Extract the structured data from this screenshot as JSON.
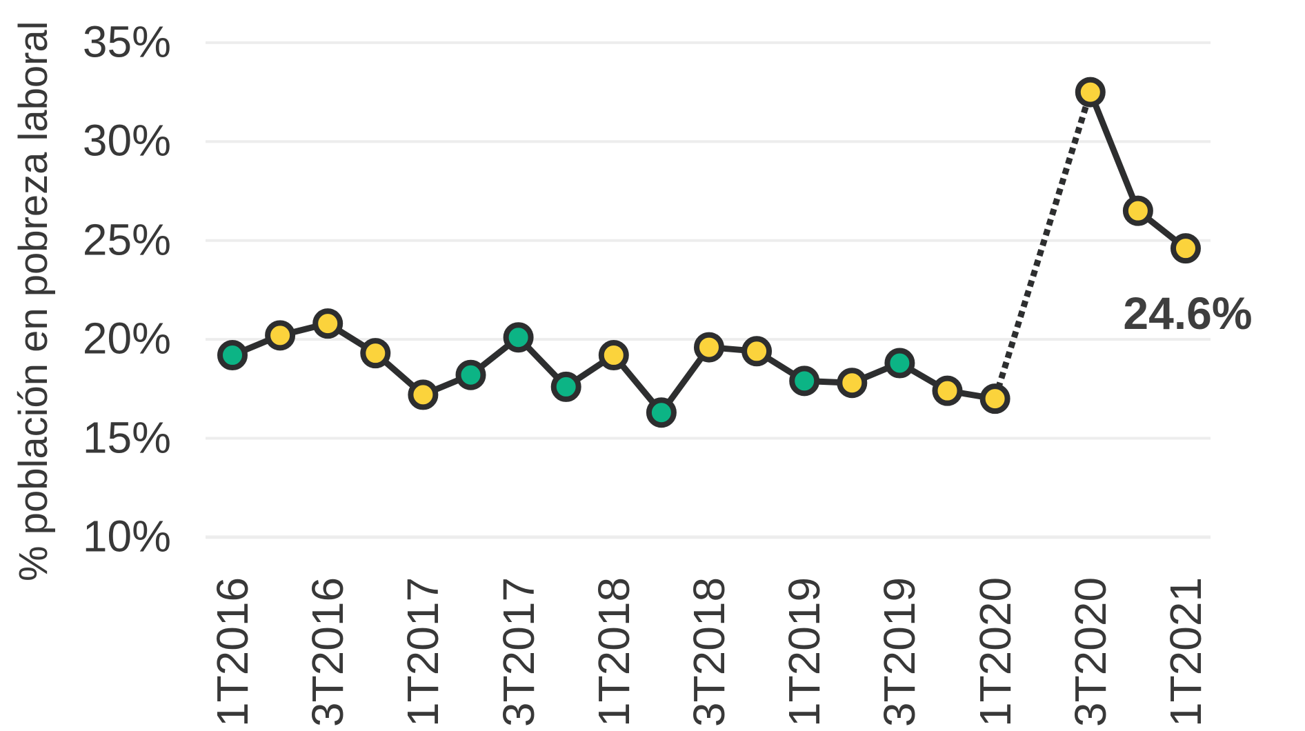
{
  "chart_data": {
    "type": "line",
    "title": "",
    "xlabel": "",
    "ylabel": "% población en pobreza laboral",
    "ylim": [
      10,
      35
    ],
    "y_tick_labels": [
      "35%",
      "30%",
      "25%",
      "20%",
      "15%",
      "10%"
    ],
    "x_tick_labels": [
      "1T2016",
      "3T2016",
      "1T2017",
      "3T2017",
      "1T2018",
      "3T2018",
      "1T2019",
      "3T2019",
      "1T2020",
      "3T2020",
      "1T2021"
    ],
    "grid": "horizontal",
    "legend": false,
    "missing_period": "2T2020",
    "series": [
      {
        "name": "% población en pobreza laboral",
        "points": [
          {
            "period": "1T2016",
            "value": 19.2,
            "marker": "green"
          },
          {
            "period": "2T2016",
            "value": 20.2,
            "marker": "yellow"
          },
          {
            "period": "3T2016",
            "value": 20.8,
            "marker": "yellow"
          },
          {
            "period": "4T2016",
            "value": 19.3,
            "marker": "yellow"
          },
          {
            "period": "1T2017",
            "value": 17.2,
            "marker": "yellow"
          },
          {
            "period": "2T2017",
            "value": 18.2,
            "marker": "green"
          },
          {
            "period": "3T2017",
            "value": 20.1,
            "marker": "green"
          },
          {
            "period": "4T2017",
            "value": 17.6,
            "marker": "green"
          },
          {
            "period": "1T2018",
            "value": 19.2,
            "marker": "yellow"
          },
          {
            "period": "2T2018",
            "value": 16.3,
            "marker": "green"
          },
          {
            "period": "3T2018",
            "value": 19.6,
            "marker": "yellow"
          },
          {
            "period": "4T2018",
            "value": 19.4,
            "marker": "yellow"
          },
          {
            "period": "1T2019",
            "value": 17.9,
            "marker": "green"
          },
          {
            "period": "2T2019",
            "value": 17.8,
            "marker": "yellow"
          },
          {
            "period": "3T2019",
            "value": 18.8,
            "marker": "green"
          },
          {
            "period": "4T2019",
            "value": 17.4,
            "marker": "yellow"
          },
          {
            "period": "1T2020",
            "value": 17.0,
            "marker": "yellow"
          },
          {
            "period": "3T2020",
            "value": 32.5,
            "marker": "yellow",
            "connector": "dotted"
          },
          {
            "period": "4T2020",
            "value": 26.5,
            "marker": "yellow"
          },
          {
            "period": "1T2021",
            "value": 24.6,
            "marker": "yellow"
          }
        ]
      }
    ],
    "annotation": {
      "text": "24.6%",
      "period": "1T2021"
    },
    "colors": {
      "marker_yellow": "#fbd33c",
      "marker_green": "#0cb485",
      "line": "#2d2e2f",
      "grid": "#ededed",
      "text": "#383838"
    }
  }
}
